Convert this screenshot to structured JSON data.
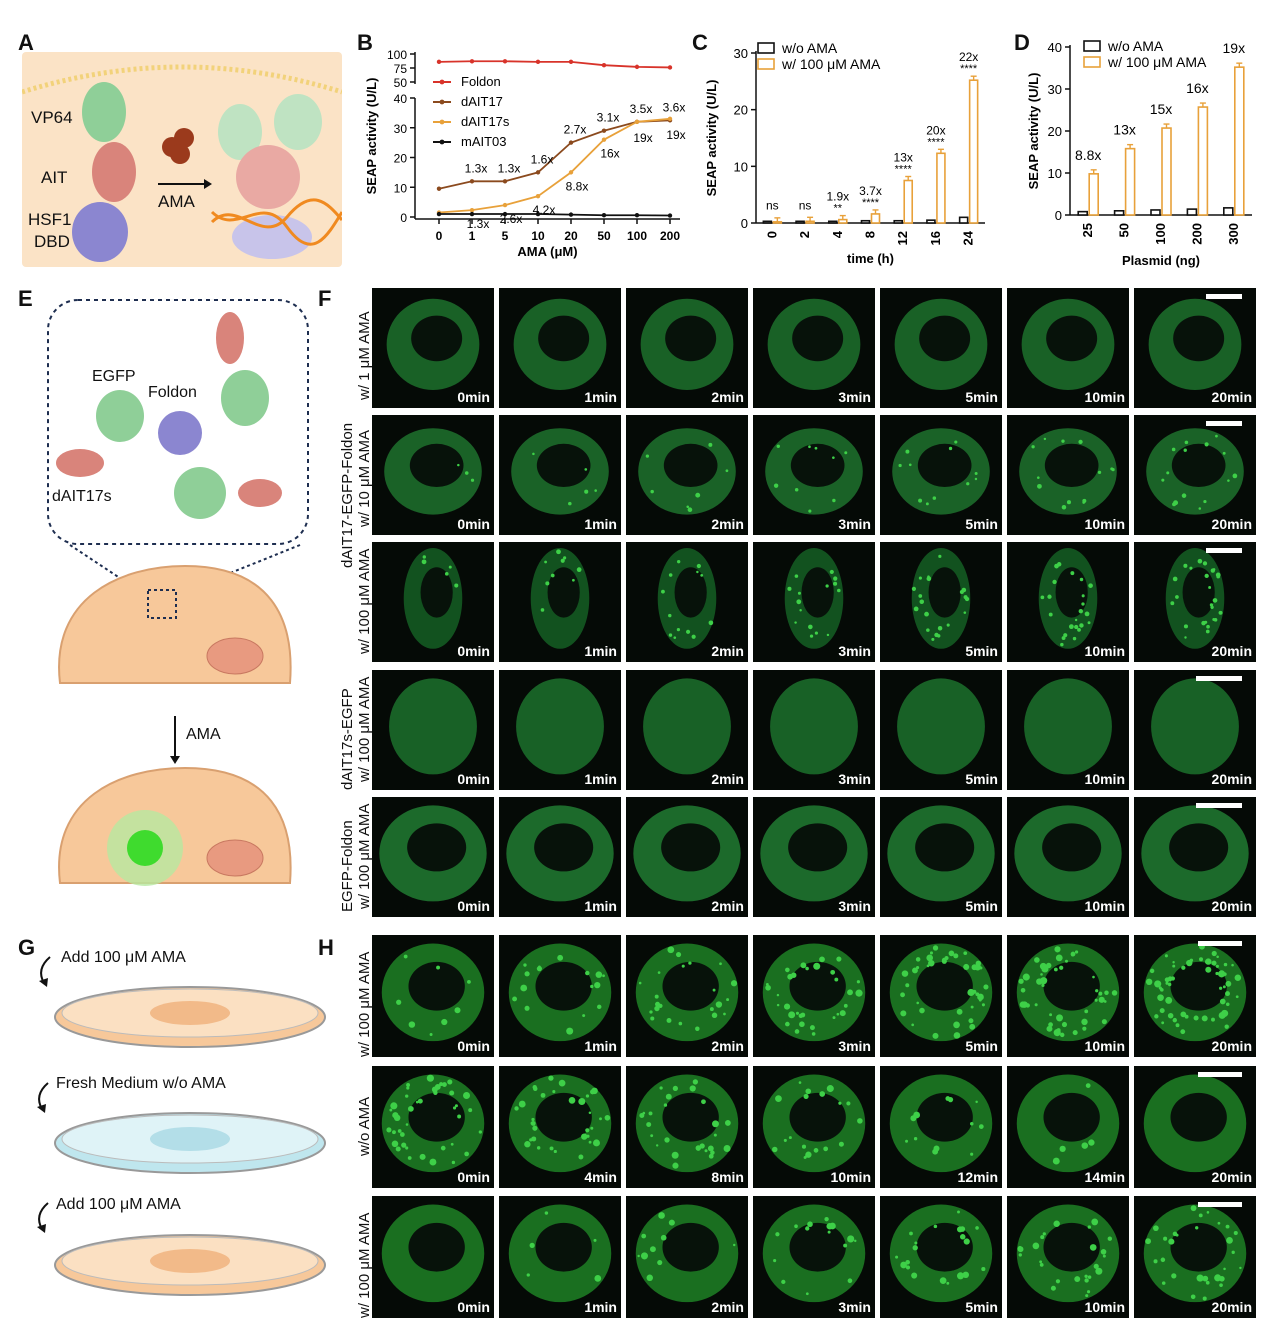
{
  "panels": {
    "A": {
      "letter": "A",
      "labels": {
        "vp64": "VP64",
        "ait": "AIT",
        "hsf1": "HSF1",
        "dbd": "DBD",
        "ama": "AMA"
      }
    },
    "B": {
      "letter": "B"
    },
    "C": {
      "letter": "C"
    },
    "D": {
      "letter": "D"
    },
    "E": {
      "letter": "E",
      "labels": {
        "egfp": "EGFP",
        "foldon": "Foldon",
        "dait17s": "dAIT17s",
        "ama": "AMA"
      }
    },
    "F": {
      "letter": "F",
      "group_label_1": "dAIT17-EGFP-Foldon",
      "group_label_2": "dAIT17s-EGFP",
      "group_label_3": "EGFP-Foldon",
      "rows": [
        {
          "label": "w/ 1 μM AMA",
          "times": [
            "0min",
            "1min",
            "2min",
            "3min",
            "5min",
            "10min",
            "20min"
          ]
        },
        {
          "label": "w/ 10 μM AMA",
          "times": [
            "0min",
            "1min",
            "2min",
            "3min",
            "5min",
            "10min",
            "20min"
          ]
        },
        {
          "label": "w/ 100 μM AMA",
          "times": [
            "0min",
            "1min",
            "2min",
            "3min",
            "5min",
            "10min",
            "20min"
          ]
        },
        {
          "label": "w/ 100 μM AMA",
          "times": [
            "0min",
            "1min",
            "2min",
            "3min",
            "5min",
            "10min",
            "20min"
          ]
        },
        {
          "label": "w/ 100 μM AMA",
          "times": [
            "0min",
            "1min",
            "2min",
            "3min",
            "5min",
            "10min",
            "20min"
          ]
        }
      ]
    },
    "G": {
      "letter": "G",
      "steps": [
        "Add 100 μM AMA",
        "Fresh Medium w/o AMA",
        "Add 100 μM AMA"
      ]
    },
    "H": {
      "letter": "H",
      "rows": [
        {
          "label": "w/ 100 μM AMA",
          "times": [
            "0min",
            "1min",
            "2min",
            "3min",
            "5min",
            "10min",
            "20min"
          ]
        },
        {
          "label": "w/o AMA",
          "times": [
            "0min",
            "4min",
            "8min",
            "10min",
            "12min",
            "14min",
            "20min"
          ]
        },
        {
          "label": "w/ 100 μM AMA",
          "times": [
            "0min",
            "1min",
            "2min",
            "3min",
            "5min",
            "10min",
            "20min"
          ]
        }
      ]
    }
  },
  "chart_data": [
    {
      "panel": "B",
      "type": "line",
      "ylabel": "SEAP activity (U/L)",
      "xlabel": "AMA (μM)",
      "categories": [
        "0",
        "1",
        "5",
        "10",
        "20",
        "50",
        "100",
        "200"
      ],
      "y_axis_break": {
        "lower_range": [
          0,
          40
        ],
        "upper_range": [
          50,
          100
        ]
      },
      "y_ticks_lower": [
        "0",
        "10",
        "20",
        "30",
        "40"
      ],
      "y_ticks_upper": [
        "50",
        "75",
        "100"
      ],
      "colors": {
        "Foldon": "#d8332a",
        "dAIT17": "#8b4a1e",
        "dAIT17s": "#e8a13a",
        "mAIT03": "#111111"
      },
      "series": [
        {
          "name": "Foldon",
          "values": [
            86,
            87,
            87,
            86,
            86,
            80,
            77,
            76
          ]
        },
        {
          "name": "dAIT17",
          "values": [
            9.5,
            12,
            12,
            15,
            25,
            29,
            32,
            32.5
          ]
        },
        {
          "name": "dAIT17s",
          "values": [
            1.5,
            2.3,
            4,
            7,
            15,
            26,
            32,
            33
          ]
        },
        {
          "name": "mAIT03",
          "values": [
            1,
            1,
            1,
            1,
            0.8,
            0.6,
            0.6,
            0.5
          ]
        }
      ],
      "annotations_dAIT17": [
        "1.3x",
        "1.3x",
        "1.6x",
        "2.7x",
        "3.1x",
        "3.5x",
        "3.6x"
      ],
      "annotations_dAIT17s": [
        "1.3x",
        "2.6x",
        "4.2x",
        "8.8x",
        "16x",
        "19x",
        "19x"
      ]
    },
    {
      "panel": "C",
      "type": "bar",
      "ylabel": "SEAP activity (U/L)",
      "xlabel": "time (h)",
      "ylim": [
        0,
        30
      ],
      "y_ticks": [
        "0",
        "10",
        "20",
        "30"
      ],
      "categories": [
        "0",
        "2",
        "4",
        "8",
        "12",
        "16",
        "24"
      ],
      "colors": {
        "w/o AMA": "#111111",
        "w/ 100 μM AMA": "#e8a13a"
      },
      "series": [
        {
          "name": "w/o AMA",
          "values": [
            0.3,
            0.3,
            0.3,
            0.4,
            0.4,
            0.5,
            1.0
          ]
        },
        {
          "name": "w/ 100 μM AMA",
          "values": [
            0.2,
            0.3,
            0.6,
            1.6,
            7.5,
            12.3,
            25.2
          ]
        }
      ],
      "fold_labels": [
        "ns",
        "ns",
        "1.9x",
        "3.7x",
        "13x",
        "20x",
        "22x"
      ],
      "significance": [
        "",
        "",
        "**",
        "****",
        "****",
        "****",
        "****"
      ]
    },
    {
      "panel": "D",
      "type": "bar",
      "ylabel": "SEAP activity (U/L)",
      "xlabel": "Plasmid (ng)",
      "ylim": [
        0,
        40
      ],
      "y_ticks": [
        "0",
        "10",
        "20",
        "30",
        "40"
      ],
      "categories": [
        "25",
        "50",
        "100",
        "200",
        "300"
      ],
      "colors": {
        "w/o AMA": "#111111",
        "w/ 100 μM AMA": "#e8a13a"
      },
      "series": [
        {
          "name": "w/o AMA",
          "values": [
            0.8,
            1.0,
            1.2,
            1.4,
            1.7
          ]
        },
        {
          "name": "w/ 100 μM AMA",
          "values": [
            9.8,
            15.8,
            20.7,
            25.7,
            35.2
          ]
        }
      ],
      "fold_labels": [
        "8.8x",
        "13x",
        "15x",
        "16x",
        "19x"
      ]
    }
  ]
}
